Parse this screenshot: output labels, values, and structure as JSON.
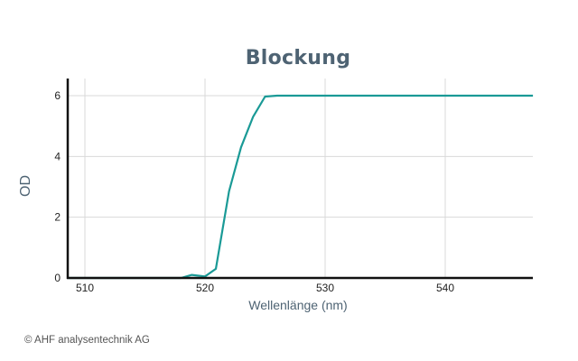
{
  "chart_data": {
    "type": "line",
    "title": "Blockung",
    "xlabel": "Wellenlänge (nm)",
    "ylabel": "OD",
    "xlim": [
      508.6,
      547.3
    ],
    "ylim": [
      0,
      6.6
    ],
    "xticks": [
      510,
      520,
      530,
      540
    ],
    "yticks": [
      0,
      2,
      4,
      6
    ],
    "grid": true,
    "legend": null,
    "series": [
      {
        "name": "OD",
        "color": "#1a9a96",
        "x": [
          508.6,
          512,
          516,
          518,
          518.9,
          520,
          520.9,
          522,
          523,
          524,
          525,
          526,
          530,
          535,
          540,
          547.3
        ],
        "y": [
          0,
          0,
          0,
          0,
          0.1,
          0.05,
          0.3,
          2.85,
          4.3,
          5.3,
          5.97,
          6.0,
          6.0,
          6.0,
          6.0,
          6.0
        ]
      }
    ]
  },
  "footer": {
    "copyright": "© AHF analysentechnik AG"
  },
  "colors": {
    "line": "#1a9a96",
    "title": "#4e6373",
    "grid": "#d9d9d9",
    "axis": "#111111"
  }
}
